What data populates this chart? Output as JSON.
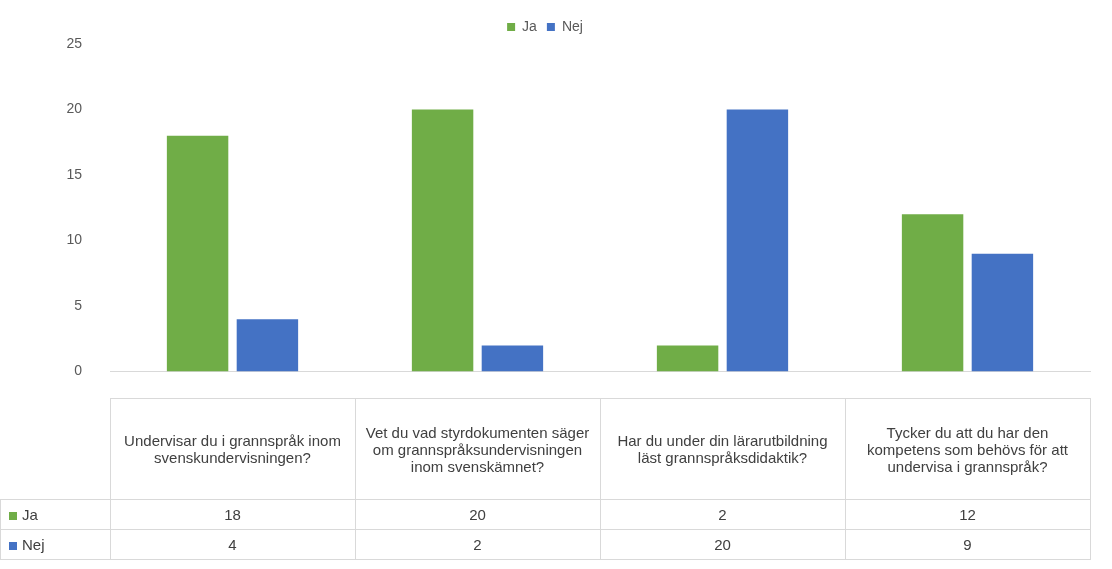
{
  "chart_data": {
    "type": "bar",
    "categories": [
      "Undervisar du i grannspråk inom svenskundervisningen?",
      "Vet du vad styrdokumenten säger om grannspråksundervisningen inom svenskämnet?",
      "Har du under din lärarutbildning läst grannspråksdidaktik?",
      "Tycker du att du har den kompetens som behövs för att undervisa i grannspråk?"
    ],
    "series": [
      {
        "name": "Ja",
        "color": "#70ad47",
        "values": [
          18,
          20,
          2,
          12
        ]
      },
      {
        "name": "Nej",
        "color": "#4472c4",
        "values": [
          4,
          2,
          20,
          9
        ]
      }
    ],
    "ylim": [
      0,
      25
    ],
    "yticks": [
      0,
      5,
      10,
      15,
      20,
      25
    ],
    "legend": "top",
    "data_labels": true
  }
}
